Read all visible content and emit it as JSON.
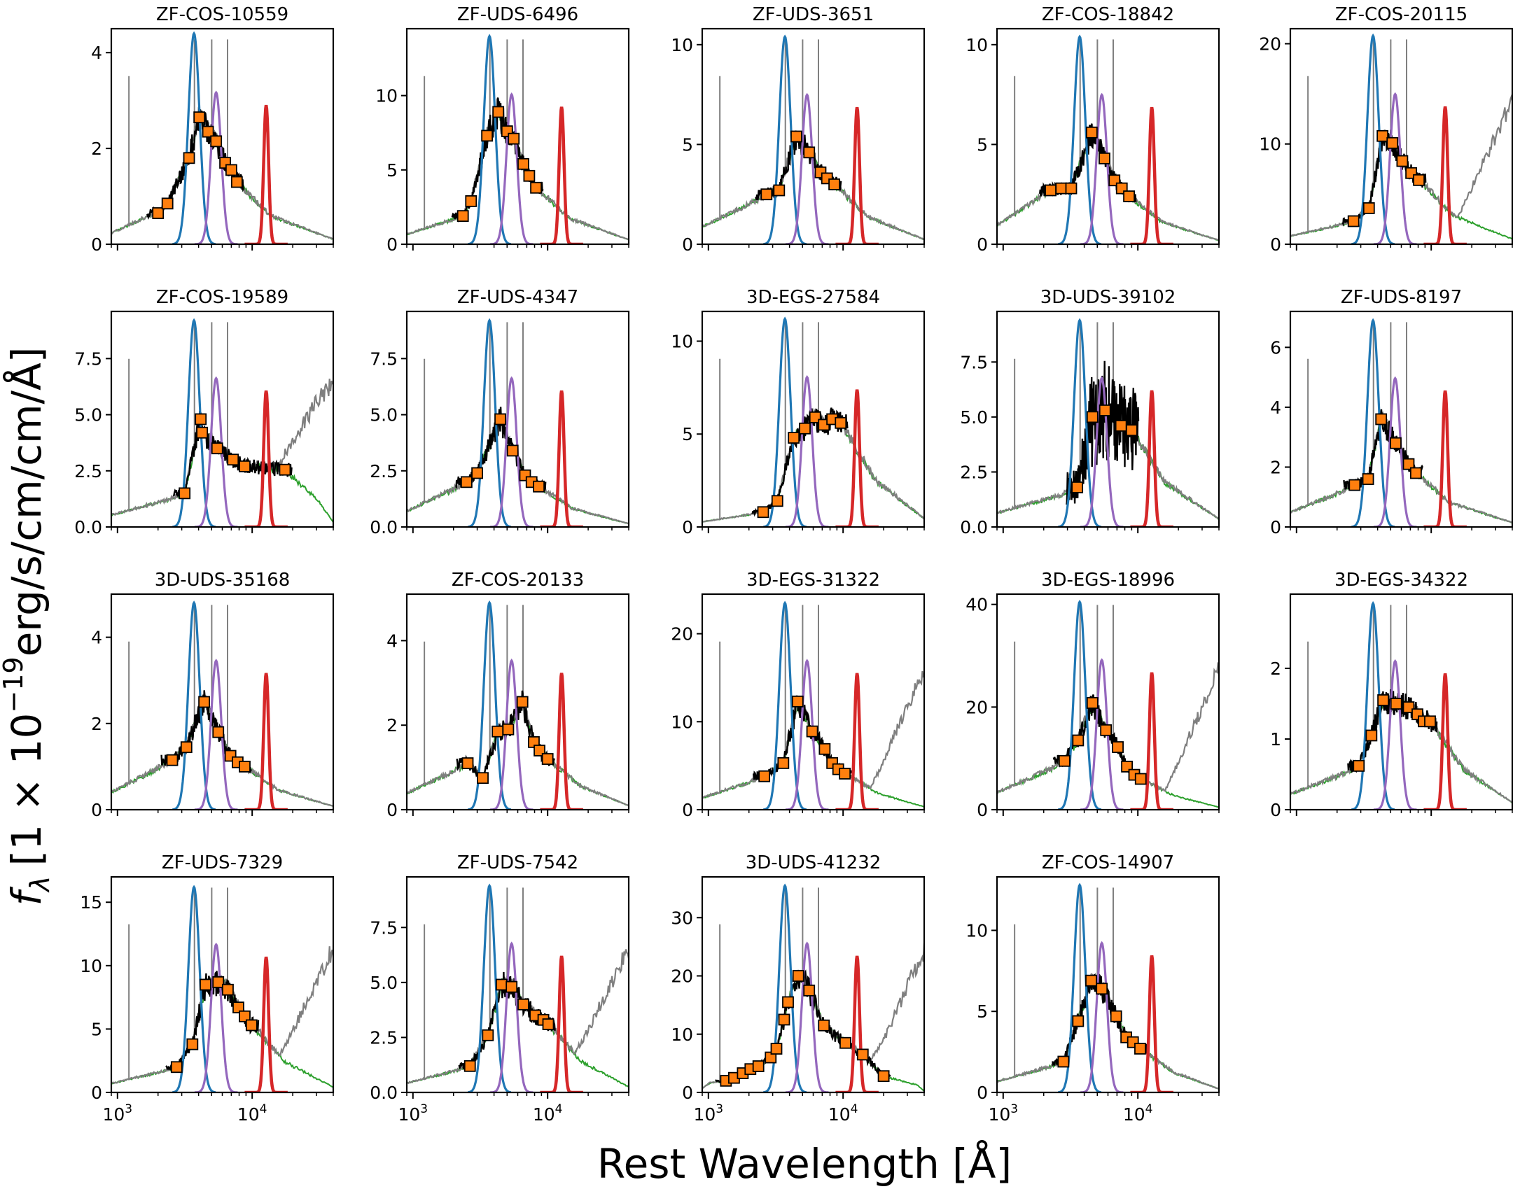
{
  "figure": {
    "xlabel": "Rest Wavelength [Å]",
    "ylabel_main": "erg/s/cm/cm/Å]",
    "ylabel_prefix": "[1 × 10",
    "ylabel_exp": "−19",
    "ylabel_f": "f",
    "ylabel_sub": "λ",
    "x_tick_base": "10",
    "x_tick_exp_3": "3",
    "x_tick_exp_4": "4",
    "x_range": [
      900,
      40000
    ],
    "x_scale": "log"
  },
  "colors": {
    "spectrum": "#000000",
    "model_gray": "#7f7f7f",
    "model_green": "#2ca02c",
    "filter_blue": "#1f77b4",
    "filter_purple": "#9467bd",
    "filter_red": "#d62728",
    "photometry": "#ff7f0e"
  },
  "chart_data": [
    {
      "type": "line",
      "title": "ZF-COS-10559",
      "ylim": [
        0,
        4.5
      ],
      "yticks": [
        0,
        2,
        4
      ],
      "filter_peak": 4.4,
      "photometry": [
        {
          "x": 2000,
          "y": 0.65
        },
        {
          "x": 2350,
          "y": 0.85
        },
        {
          "x": 3400,
          "y": 1.8
        },
        {
          "x": 4050,
          "y": 2.65
        },
        {
          "x": 4700,
          "y": 2.35
        },
        {
          "x": 5400,
          "y": 2.15
        },
        {
          "x": 6300,
          "y": 1.7
        },
        {
          "x": 7000,
          "y": 1.55
        },
        {
          "x": 7700,
          "y": 1.3
        }
      ]
    },
    {
      "type": "line",
      "title": "ZF-UDS-6496",
      "ylim": [
        0,
        14.5
      ],
      "yticks": [
        0,
        5,
        10
      ],
      "filter_peak": 14.0,
      "photometry": [
        {
          "x": 2350,
          "y": 1.9
        },
        {
          "x": 2700,
          "y": 2.9
        },
        {
          "x": 3550,
          "y": 7.3
        },
        {
          "x": 4300,
          "y": 8.9
        },
        {
          "x": 5000,
          "y": 7.6
        },
        {
          "x": 5600,
          "y": 7.1
        },
        {
          "x": 6600,
          "y": 5.4
        },
        {
          "x": 7300,
          "y": 4.6
        },
        {
          "x": 8200,
          "y": 3.8
        }
      ]
    },
    {
      "type": "line",
      "title": "ZF-UDS-3651",
      "ylim": [
        0,
        10.8
      ],
      "yticks": [
        0,
        5,
        10
      ],
      "filter_peak": 10.4,
      "photometry": [
        {
          "x": 2700,
          "y": 2.5
        },
        {
          "x": 3350,
          "y": 2.7
        },
        {
          "x": 4500,
          "y": 5.4
        },
        {
          "x": 5600,
          "y": 4.6
        },
        {
          "x": 6800,
          "y": 3.6
        },
        {
          "x": 7600,
          "y": 3.3
        },
        {
          "x": 8600,
          "y": 3.0
        }
      ]
    },
    {
      "type": "line",
      "title": "ZF-COS-18842",
      "ylim": [
        0,
        10.8
      ],
      "yticks": [
        0,
        5,
        10
      ],
      "filter_peak": 10.4,
      "photometry": [
        {
          "x": 2250,
          "y": 2.7
        },
        {
          "x": 2700,
          "y": 2.8
        },
        {
          "x": 3200,
          "y": 2.8
        },
        {
          "x": 4550,
          "y": 5.6
        },
        {
          "x": 5650,
          "y": 4.3
        },
        {
          "x": 6700,
          "y": 3.2
        },
        {
          "x": 7600,
          "y": 2.8
        },
        {
          "x": 8600,
          "y": 2.4
        }
      ]
    },
    {
      "type": "line",
      "title": "ZF-COS-20115",
      "ylim": [
        0,
        21.5
      ],
      "yticks": [
        0,
        10,
        20
      ],
      "filter_peak": 20.8,
      "photometry": [
        {
          "x": 2650,
          "y": 2.3
        },
        {
          "x": 3450,
          "y": 3.6
        },
        {
          "x": 4350,
          "y": 10.8
        },
        {
          "x": 5150,
          "y": 10.1
        },
        {
          "x": 6100,
          "y": 8.3
        },
        {
          "x": 7100,
          "y": 7.1
        },
        {
          "x": 8100,
          "y": 6.4
        }
      ]
    },
    {
      "type": "line",
      "title": "ZF-COS-19589",
      "ylim": [
        0,
        9.6
      ],
      "yticks": [
        0,
        2.5,
        5.0,
        7.5
      ],
      "ytick_labels": [
        "0.0",
        "2.5",
        "5.0",
        "7.5"
      ],
      "filter_peak": 9.2,
      "photometry": [
        {
          "x": 3150,
          "y": 1.5
        },
        {
          "x": 4150,
          "y": 4.8
        },
        {
          "x": 4250,
          "y": 4.2
        },
        {
          "x": 5500,
          "y": 3.5
        },
        {
          "x": 7200,
          "y": 3.0
        },
        {
          "x": 8800,
          "y": 2.7
        },
        {
          "x": 17500,
          "y": 2.55
        }
      ]
    },
    {
      "type": "line",
      "title": "ZF-UDS-4347",
      "ylim": [
        0,
        9.6
      ],
      "yticks": [
        0,
        2.5,
        5.0,
        7.5
      ],
      "ytick_labels": [
        "0.0",
        "2.5",
        "5.0",
        "7.5"
      ],
      "filter_peak": 9.2,
      "photometry": [
        {
          "x": 2500,
          "y": 2.0
        },
        {
          "x": 3000,
          "y": 2.4
        },
        {
          "x": 4450,
          "y": 4.8
        },
        {
          "x": 5500,
          "y": 3.4
        },
        {
          "x": 6800,
          "y": 2.3
        },
        {
          "x": 7600,
          "y": 2.0
        },
        {
          "x": 8600,
          "y": 1.8
        }
      ]
    },
    {
      "type": "line",
      "title": "3D-EGS-27584",
      "ylim": [
        0,
        11.6
      ],
      "yticks": [
        0,
        5,
        10
      ],
      "filter_peak": 11.2,
      "photometry": [
        {
          "x": 2550,
          "y": 0.8
        },
        {
          "x": 3250,
          "y": 1.4
        },
        {
          "x": 4300,
          "y": 4.8
        },
        {
          "x": 5200,
          "y": 5.3
        },
        {
          "x": 6200,
          "y": 5.9
        },
        {
          "x": 7200,
          "y": 5.5
        },
        {
          "x": 8300,
          "y": 5.8
        },
        {
          "x": 9600,
          "y": 5.6
        }
      ]
    },
    {
      "type": "line",
      "title": "3D-UDS-39102",
      "ylim": [
        0,
        9.8
      ],
      "yticks": [
        0,
        2.5,
        5.0,
        7.5
      ],
      "ytick_labels": [
        "0.0",
        "2.5",
        "5.0",
        "7.5"
      ],
      "filter_peak": 9.4,
      "photometry": [
        {
          "x": 3550,
          "y": 1.8
        },
        {
          "x": 4600,
          "y": 5.0
        },
        {
          "x": 5700,
          "y": 5.3
        },
        {
          "x": 7500,
          "y": 4.6
        },
        {
          "x": 9000,
          "y": 4.4
        }
      ]
    },
    {
      "type": "line",
      "title": "ZF-UDS-8197",
      "ylim": [
        0,
        7.2
      ],
      "yticks": [
        0,
        2,
        4,
        6
      ],
      "filter_peak": 6.9,
      "photometry": [
        {
          "x": 2700,
          "y": 1.4
        },
        {
          "x": 3400,
          "y": 1.6
        },
        {
          "x": 4250,
          "y": 3.6
        },
        {
          "x": 5450,
          "y": 2.8
        },
        {
          "x": 6800,
          "y": 2.1
        },
        {
          "x": 7700,
          "y": 1.8
        }
      ]
    },
    {
      "type": "line",
      "title": "3D-UDS-35168",
      "ylim": [
        0,
        5.0
      ],
      "yticks": [
        0,
        2,
        4
      ],
      "filter_peak": 4.8,
      "photometry": [
        {
          "x": 2550,
          "y": 1.15
        },
        {
          "x": 3250,
          "y": 1.45
        },
        {
          "x": 4400,
          "y": 2.5
        },
        {
          "x": 5600,
          "y": 1.8
        },
        {
          "x": 6900,
          "y": 1.25
        },
        {
          "x": 7800,
          "y": 1.1
        },
        {
          "x": 8800,
          "y": 1.0
        }
      ]
    },
    {
      "type": "line",
      "title": "ZF-COS-20133",
      "ylim": [
        0,
        5.1
      ],
      "yticks": [
        0,
        2,
        4
      ],
      "filter_peak": 4.9,
      "photometry": [
        {
          "x": 2550,
          "y": 1.1
        },
        {
          "x": 3300,
          "y": 0.75
        },
        {
          "x": 4250,
          "y": 1.85
        },
        {
          "x": 5100,
          "y": 1.9
        },
        {
          "x": 6500,
          "y": 2.55
        },
        {
          "x": 7900,
          "y": 1.6
        },
        {
          "x": 8700,
          "y": 1.4
        },
        {
          "x": 10000,
          "y": 1.2
        }
      ]
    },
    {
      "type": "line",
      "title": "3D-EGS-31322",
      "ylim": [
        0,
        24.5
      ],
      "yticks": [
        0,
        10,
        20
      ],
      "filter_peak": 23.5,
      "photometry": [
        {
          "x": 2600,
          "y": 3.8
        },
        {
          "x": 3600,
          "y": 5.3
        },
        {
          "x": 4600,
          "y": 12.3
        },
        {
          "x": 5900,
          "y": 8.9
        },
        {
          "x": 7300,
          "y": 6.9
        },
        {
          "x": 8300,
          "y": 5.3
        },
        {
          "x": 9200,
          "y": 4.6
        },
        {
          "x": 10300,
          "y": 4.1
        }
      ]
    },
    {
      "type": "line",
      "title": "3D-EGS-18996",
      "ylim": [
        0,
        42
      ],
      "yticks": [
        0,
        20,
        40
      ],
      "filter_peak": 40.5,
      "photometry": [
        {
          "x": 2850,
          "y": 9.5
        },
        {
          "x": 3600,
          "y": 13.5
        },
        {
          "x": 4600,
          "y": 20.8
        },
        {
          "x": 5800,
          "y": 15.5
        },
        {
          "x": 7100,
          "y": 12.2
        },
        {
          "x": 8300,
          "y": 8.4
        },
        {
          "x": 9400,
          "y": 6.8
        },
        {
          "x": 10500,
          "y": 6.0
        }
      ]
    },
    {
      "type": "line",
      "title": "3D-EGS-34322",
      "ylim": [
        0,
        3.05
      ],
      "yticks": [
        0,
        1,
        2
      ],
      "filter_peak": 2.92,
      "photometry": [
        {
          "x": 2900,
          "y": 0.62
        },
        {
          "x": 3600,
          "y": 1.05
        },
        {
          "x": 4400,
          "y": 1.55
        },
        {
          "x": 5500,
          "y": 1.5
        },
        {
          "x": 6800,
          "y": 1.45
        },
        {
          "x": 7900,
          "y": 1.35
        },
        {
          "x": 8800,
          "y": 1.25
        },
        {
          "x": 9800,
          "y": 1.25
        }
      ]
    },
    {
      "type": "line",
      "title": "ZF-UDS-7329",
      "ylim": [
        0,
        17
      ],
      "yticks": [
        0,
        5,
        10,
        15
      ],
      "filter_peak": 16.2,
      "photometry": [
        {
          "x": 2750,
          "y": 2.0
        },
        {
          "x": 3600,
          "y": 3.8
        },
        {
          "x": 4500,
          "y": 8.5
        },
        {
          "x": 5600,
          "y": 8.7
        },
        {
          "x": 6600,
          "y": 8.1
        },
        {
          "x": 7900,
          "y": 6.7
        },
        {
          "x": 8800,
          "y": 6.0
        },
        {
          "x": 9900,
          "y": 5.3
        }
      ]
    },
    {
      "type": "line",
      "title": "ZF-UDS-7542",
      "ylim": [
        0,
        9.8
      ],
      "yticks": [
        0,
        2.5,
        5.0,
        7.5
      ],
      "ytick_labels": [
        "0.0",
        "2.5",
        "5.0",
        "7.5"
      ],
      "filter_peak": 9.4,
      "photometry": [
        {
          "x": 2650,
          "y": 1.2
        },
        {
          "x": 3600,
          "y": 2.6
        },
        {
          "x": 4550,
          "y": 4.9
        },
        {
          "x": 5400,
          "y": 4.8
        },
        {
          "x": 6600,
          "y": 4.0
        },
        {
          "x": 8100,
          "y": 3.5
        },
        {
          "x": 9300,
          "y": 3.3
        },
        {
          "x": 10100,
          "y": 3.1
        }
      ]
    },
    {
      "type": "line",
      "title": "3D-UDS-41232",
      "ylim": [
        0,
        37
      ],
      "yticks": [
        0,
        10,
        20,
        30
      ],
      "filter_peak": 35.5,
      "photometry": [
        {
          "x": 1350,
          "y": 2.0
        },
        {
          "x": 1550,
          "y": 2.5
        },
        {
          "x": 1800,
          "y": 3.3
        },
        {
          "x": 2050,
          "y": 4.0
        },
        {
          "x": 2350,
          "y": 4.5
        },
        {
          "x": 2900,
          "y": 6.0
        },
        {
          "x": 3200,
          "y": 7.5
        },
        {
          "x": 3650,
          "y": 12.5
        },
        {
          "x": 3900,
          "y": 15.5
        },
        {
          "x": 4650,
          "y": 20.0
        },
        {
          "x": 5600,
          "y": 17.5
        },
        {
          "x": 7200,
          "y": 11.5
        },
        {
          "x": 10400,
          "y": 8.5
        },
        {
          "x": 14000,
          "y": 6.5
        },
        {
          "x": 20000,
          "y": 2.8
        }
      ]
    },
    {
      "type": "line",
      "title": "ZF-COS-14907",
      "ylim": [
        0,
        13.3
      ],
      "yticks": [
        0,
        5,
        10
      ],
      "filter_peak": 12.8,
      "photometry": [
        {
          "x": 2800,
          "y": 1.9
        },
        {
          "x": 3600,
          "y": 4.4
        },
        {
          "x": 4500,
          "y": 6.9
        },
        {
          "x": 5400,
          "y": 6.4
        },
        {
          "x": 6900,
          "y": 4.7
        },
        {
          "x": 8200,
          "y": 3.4
        },
        {
          "x": 9200,
          "y": 3.1
        },
        {
          "x": 10400,
          "y": 2.7
        }
      ]
    }
  ]
}
